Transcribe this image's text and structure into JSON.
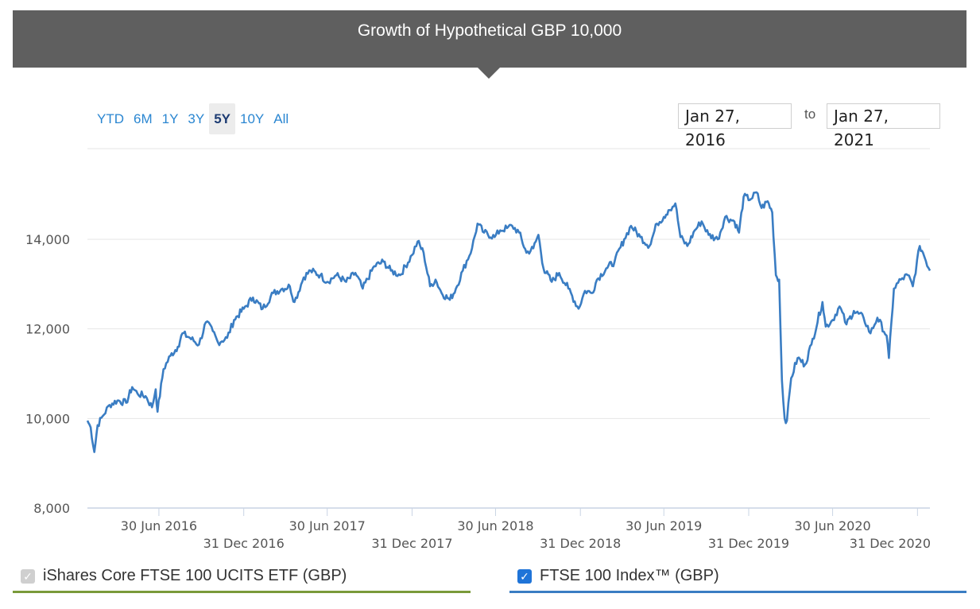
{
  "header": {
    "title": "Growth of Hypothetical GBP 10,000"
  },
  "range_buttons": [
    {
      "label": "YTD",
      "active": false
    },
    {
      "label": "6M",
      "active": false
    },
    {
      "label": "1Y",
      "active": false
    },
    {
      "label": "3Y",
      "active": false
    },
    {
      "label": "5Y",
      "active": true
    },
    {
      "label": "10Y",
      "active": false
    },
    {
      "label": "All",
      "active": false
    }
  ],
  "date_range": {
    "from": "Jan 27, 2016",
    "separator": "to",
    "to": "Jan 27, 2021"
  },
  "legend": {
    "etf": {
      "label": "iShares Core FTSE 100 UCITS ETF (GBP)",
      "checked": true,
      "disabled": true,
      "color": "#7a9a3a",
      "check_glyph": "✓"
    },
    "index": {
      "label": "FTSE 100 Index™ (GBP)",
      "checked": true,
      "color": "#3a7dc3",
      "check_glyph": "✓"
    }
  },
  "chart_data": {
    "type": "line",
    "title": "Growth of Hypothetical GBP 10,000",
    "xlabel": "",
    "ylabel": "",
    "ylim": [
      8000,
      15800
    ],
    "xlim": [
      "2016-01-27",
      "2021-01-27"
    ],
    "yticks": [
      8000,
      10000,
      12000,
      14000
    ],
    "ytick_labels": [
      "8,000",
      "10,000",
      "12,000",
      "14,000"
    ],
    "xticks": [
      "2016-06-30",
      "2016-12-31",
      "2017-06-30",
      "2017-12-31",
      "2018-06-30",
      "2018-12-31",
      "2019-06-30",
      "2019-12-31",
      "2020-06-30",
      "2020-12-31"
    ],
    "xtick_labels": [
      "30 Jun 2016",
      "31 Dec 2016",
      "30 Jun 2017",
      "31 Dec 2017",
      "30 Jun 2018",
      "31 Dec 2018",
      "30 Jun 2019",
      "31 Dec 2019",
      "30 Jun 2020",
      "31 Dec 2020"
    ],
    "grid": true,
    "series": [
      {
        "name": "FTSE 100 Index™ (GBP)",
        "color": "#3a7dc3",
        "points": [
          [
            "2016-01-27",
            9950
          ],
          [
            "2016-02-03",
            9800
          ],
          [
            "2016-02-11",
            9250
          ],
          [
            "2016-02-18",
            9850
          ],
          [
            "2016-02-29",
            10050
          ],
          [
            "2016-03-15",
            10300
          ],
          [
            "2016-04-01",
            10400
          ],
          [
            "2016-04-20",
            10350
          ],
          [
            "2016-05-03",
            10700
          ],
          [
            "2016-05-15",
            10550
          ],
          [
            "2016-06-01",
            10500
          ],
          [
            "2016-06-15",
            10250
          ],
          [
            "2016-06-23",
            10650
          ],
          [
            "2016-06-27",
            10150
          ],
          [
            "2016-07-10",
            11100
          ],
          [
            "2016-07-25",
            11400
          ],
          [
            "2016-08-10",
            11600
          ],
          [
            "2016-08-20",
            11900
          ],
          [
            "2016-09-05",
            11800
          ],
          [
            "2016-09-25",
            11650
          ],
          [
            "2016-10-10",
            12150
          ],
          [
            "2016-10-25",
            11950
          ],
          [
            "2016-11-05",
            11700
          ],
          [
            "2016-11-25",
            11800
          ],
          [
            "2016-12-10",
            12200
          ],
          [
            "2016-12-31",
            12450
          ],
          [
            "2017-01-20",
            12700
          ],
          [
            "2017-02-10",
            12450
          ],
          [
            "2017-03-05",
            12800
          ],
          [
            "2017-03-25",
            12900
          ],
          [
            "2017-04-10",
            12950
          ],
          [
            "2017-04-20",
            12600
          ],
          [
            "2017-05-10",
            13150
          ],
          [
            "2017-05-25",
            13300
          ],
          [
            "2017-06-15",
            13200
          ],
          [
            "2017-06-30",
            13050
          ],
          [
            "2017-07-20",
            13200
          ],
          [
            "2017-08-10",
            13050
          ],
          [
            "2017-08-30",
            13250
          ],
          [
            "2017-09-15",
            12900
          ],
          [
            "2017-10-10",
            13400
          ],
          [
            "2017-10-30",
            13500
          ],
          [
            "2017-11-15",
            13300
          ],
          [
            "2017-12-05",
            13200
          ],
          [
            "2017-12-31",
            13650
          ],
          [
            "2018-01-12",
            13950
          ],
          [
            "2018-01-25",
            13700
          ],
          [
            "2018-02-08",
            12950
          ],
          [
            "2018-02-20",
            13100
          ],
          [
            "2018-03-05",
            12800
          ],
          [
            "2018-03-23",
            12650
          ],
          [
            "2018-04-05",
            12900
          ],
          [
            "2018-04-20",
            13300
          ],
          [
            "2018-05-10",
            13800
          ],
          [
            "2018-05-22",
            14350
          ],
          [
            "2018-06-05",
            14150
          ],
          [
            "2018-06-28",
            14050
          ],
          [
            "2018-07-10",
            14200
          ],
          [
            "2018-07-25",
            14250
          ],
          [
            "2018-08-05",
            14300
          ],
          [
            "2018-08-20",
            14150
          ],
          [
            "2018-09-05",
            13700
          ],
          [
            "2018-09-20",
            13800
          ],
          [
            "2018-10-01",
            14100
          ],
          [
            "2018-10-12",
            13350
          ],
          [
            "2018-10-30",
            13050
          ],
          [
            "2018-11-15",
            13250
          ],
          [
            "2018-12-05",
            12900
          ],
          [
            "2018-12-27",
            12450
          ],
          [
            "2019-01-10",
            12850
          ],
          [
            "2019-01-25",
            12800
          ],
          [
            "2019-02-05",
            13100
          ],
          [
            "2019-02-25",
            13350
          ],
          [
            "2019-03-15",
            13500
          ],
          [
            "2019-04-05",
            14000
          ],
          [
            "2019-04-20",
            14300
          ],
          [
            "2019-05-10",
            14050
          ],
          [
            "2019-05-30",
            13850
          ],
          [
            "2019-06-15",
            14350
          ],
          [
            "2019-06-30",
            14500
          ],
          [
            "2019-07-10",
            14650
          ],
          [
            "2019-07-25",
            14800
          ],
          [
            "2019-08-05",
            14050
          ],
          [
            "2019-08-20",
            13850
          ],
          [
            "2019-09-05",
            14200
          ],
          [
            "2019-09-20",
            14400
          ],
          [
            "2019-10-05",
            14100
          ],
          [
            "2019-10-25",
            14000
          ],
          [
            "2019-11-10",
            14500
          ],
          [
            "2019-11-30",
            14400
          ],
          [
            "2019-12-10",
            14150
          ],
          [
            "2019-12-20",
            14950
          ],
          [
            "2020-01-05",
            14900
          ],
          [
            "2020-01-17",
            15050
          ],
          [
            "2020-01-28",
            14700
          ],
          [
            "2020-02-10",
            14850
          ],
          [
            "2020-02-20",
            14600
          ],
          [
            "2020-02-28",
            13200
          ],
          [
            "2020-03-06",
            13100
          ],
          [
            "2020-03-12",
            10850
          ],
          [
            "2020-03-18",
            10000
          ],
          [
            "2020-03-23",
            9950
          ],
          [
            "2020-04-01",
            10900
          ],
          [
            "2020-04-15",
            11350
          ],
          [
            "2020-05-01",
            11200
          ],
          [
            "2020-05-15",
            11650
          ],
          [
            "2020-06-08",
            12600
          ],
          [
            "2020-06-15",
            12050
          ],
          [
            "2020-06-30",
            12200
          ],
          [
            "2020-07-15",
            12500
          ],
          [
            "2020-07-30",
            12100
          ],
          [
            "2020-08-15",
            12400
          ],
          [
            "2020-09-05",
            12250
          ],
          [
            "2020-09-20",
            11900
          ],
          [
            "2020-10-05",
            12250
          ],
          [
            "2020-10-25",
            11850
          ],
          [
            "2020-10-30",
            11350
          ],
          [
            "2020-11-10",
            12900
          ],
          [
            "2020-11-25",
            13100
          ],
          [
            "2020-12-10",
            13200
          ],
          [
            "2020-12-21",
            12950
          ],
          [
            "2021-01-05",
            13850
          ],
          [
            "2021-01-12",
            13700
          ],
          [
            "2021-01-27",
            13300
          ]
        ]
      }
    ]
  }
}
